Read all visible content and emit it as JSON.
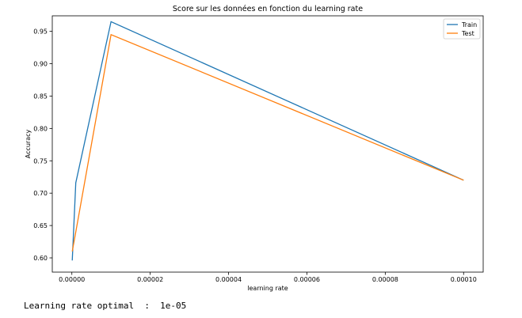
{
  "chart_data": {
    "type": "line",
    "title": "Score sur les données en fonction du learning rate",
    "xlabel": "learning rate",
    "ylabel": "Accuracy",
    "xlim": [
      -5e-06,
      0.000105
    ],
    "ylim": [
      0.578,
      0.974
    ],
    "xticks": [
      0,
      2e-05,
      4e-05,
      6e-05,
      8e-05,
      0.0001
    ],
    "xtick_labels": [
      "0.00000",
      "0.00002",
      "0.00004",
      "0.00006",
      "0.00008",
      "0.00010"
    ],
    "yticks": [
      0.6,
      0.65,
      0.7,
      0.75,
      0.8,
      0.85,
      0.9,
      0.95
    ],
    "ytick_labels": [
      "0.60",
      "0.65",
      "0.70",
      "0.75",
      "0.80",
      "0.85",
      "0.90",
      "0.95"
    ],
    "legend_position": "top-right",
    "grid": false,
    "series": [
      {
        "name": "Train",
        "color": "#1f77b4",
        "x": [
          1e-07,
          1e-06,
          1e-05,
          0.0001
        ],
        "y": [
          0.596,
          0.716,
          0.965,
          0.72
        ]
      },
      {
        "name": "Test",
        "color": "#ff7f0e",
        "x": [
          1e-07,
          1e-06,
          1e-05,
          0.0001
        ],
        "y": [
          0.61,
          0.64,
          0.945,
          0.72
        ]
      }
    ]
  },
  "output": {
    "text": "Learning rate optimal  :  1e-05"
  }
}
